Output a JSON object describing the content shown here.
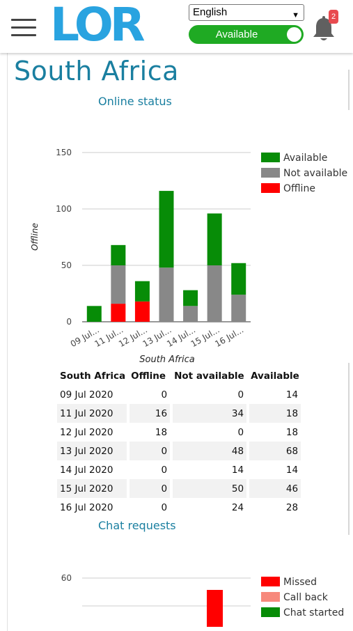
{
  "header": {
    "logo_text": "LOR",
    "language_select": {
      "selected": "English"
    },
    "availability_toggle": {
      "label": "Available",
      "on": true
    },
    "notifications": {
      "count": "2"
    }
  },
  "page": {
    "title": "South Africa",
    "online_status_title": "Online status",
    "chat_requests_title": "Chat requests"
  },
  "chart_data": [
    {
      "type": "bar",
      "stacked": true,
      "categories": [
        "09 Jul 2020",
        "11 Jul 2020",
        "12 Jul 2020",
        "13 Jul 2020",
        "14 Jul 2020",
        "15 Jul 2020",
        "16 Jul 2020"
      ],
      "tick_labels": [
        "09 Jul...",
        "11 Jul...",
        "12 Jul...",
        "13 Jul...",
        "14 Jul...",
        "15 Jul...",
        "16 Jul..."
      ],
      "series": [
        {
          "name": "Offline",
          "color": "#ff0000",
          "values": [
            0,
            16,
            18,
            0,
            0,
            0,
            0
          ]
        },
        {
          "name": "Not available",
          "color": "#888888",
          "values": [
            0,
            34,
            0,
            48,
            14,
            50,
            24
          ]
        },
        {
          "name": "Available",
          "color": "#078c07",
          "values": [
            14,
            18,
            18,
            68,
            14,
            46,
            28
          ]
        }
      ],
      "legend_order": [
        "Available",
        "Not available",
        "Offline"
      ],
      "xlabel": "South Africa",
      "ylabel": "Offline",
      "ylim": [
        0,
        150
      ],
      "yticks": [
        "0",
        "50",
        "100",
        "150"
      ],
      "grid": true,
      "legend_position": "right"
    },
    {
      "type": "bar",
      "stacked": true,
      "series": [
        {
          "name": "Missed",
          "color": "#ff0000"
        },
        {
          "name": "Call back",
          "color": "#f7897c"
        },
        {
          "name": "Chat started",
          "color": "#078c07"
        }
      ],
      "yticks_visible": [
        "60"
      ],
      "legend_position": "right"
    }
  ],
  "table": {
    "headers": [
      "South Africa",
      "Offline",
      "Not available",
      "Available"
    ],
    "rows": [
      [
        "09 Jul 2020",
        "0",
        "0",
        "14"
      ],
      [
        "11 Jul 2020",
        "16",
        "34",
        "18"
      ],
      [
        "12 Jul 2020",
        "18",
        "0",
        "18"
      ],
      [
        "13 Jul 2020",
        "0",
        "48",
        "68"
      ],
      [
        "14 Jul 2020",
        "0",
        "14",
        "14"
      ],
      [
        "15 Jul 2020",
        "0",
        "50",
        "46"
      ],
      [
        "16 Jul 2020",
        "0",
        "24",
        "28"
      ]
    ]
  }
}
